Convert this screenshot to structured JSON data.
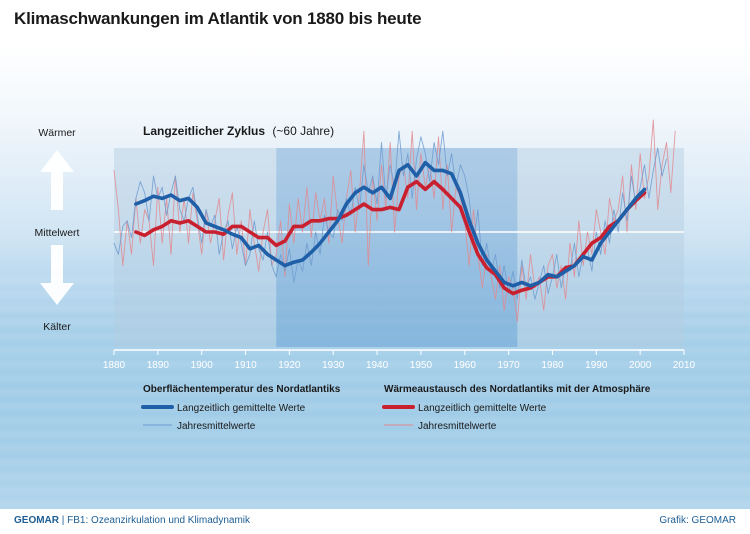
{
  "title": "Klimaschwankungen im Atlantik von 1880 bis heute",
  "footer": {
    "brand": "GEOMAR",
    "department": "| FB1: Ozeanzirkulation und Klimadynamik",
    "credit": "Grafik: GEOMAR"
  },
  "colors": {
    "ocean_temperature": "#1f5fa8",
    "ocean_temperature_thin": "#6d9bcf",
    "heat_exchange": "#c8202f",
    "heat_exchange_thin": "#e08a90"
  },
  "chart_data": {
    "type": "line",
    "title": "Langzeitlicher Zyklus",
    "subtitle": "(~60 Jahre)",
    "y_labels": {
      "top": "Wärmer",
      "middle": "Mittelwert",
      "bottom": "Kälter"
    },
    "xlim": [
      1880,
      2010
    ],
    "ylim": [
      -1,
      1
    ],
    "x_ticks": [
      1880,
      1890,
      1900,
      1910,
      1920,
      1930,
      1940,
      1950,
      1960,
      1970,
      1980,
      1990,
      2000,
      2010
    ],
    "phases": [
      {
        "start": 1880,
        "end": 1917,
        "phase": "warm"
      },
      {
        "start": 1917,
        "end": 1972,
        "phase": "cool"
      },
      {
        "start": 1972,
        "end": 2010,
        "phase": "warm"
      }
    ],
    "legend_groups": [
      {
        "heading": "Oberflächentemperatur des Nordatlantiks",
        "items": [
          "Langzeitlich gemittelte Werte",
          "Jahresmittelwerte"
        ]
      },
      {
        "heading": "Wärmeaustausch des Nordatlantiks mit der Atmosphäre",
        "items": [
          "Langzeitlich gemittelte Werte",
          "Jahresmittelwerte"
        ]
      }
    ],
    "series": [
      {
        "name": "Oberflächentemperatur des Nordatlantiks – Langzeitlich gemittelte Werte",
        "style": "smooth",
        "x": [
          1885,
          1887,
          1889,
          1891,
          1893,
          1895,
          1897,
          1899,
          1901,
          1903,
          1905,
          1907,
          1909,
          1911,
          1913,
          1915,
          1917,
          1919,
          1921,
          1923,
          1925,
          1927,
          1929,
          1931,
          1933,
          1935,
          1937,
          1939,
          1941,
          1943,
          1945,
          1947,
          1949,
          1951,
          1953,
          1955,
          1957,
          1959,
          1961,
          1963,
          1965,
          1967,
          1969,
          1971,
          1973,
          1975,
          1977,
          1979,
          1981,
          1983,
          1985,
          1987,
          1989,
          1991,
          1993,
          1995,
          1997,
          1999,
          2001
        ],
        "values": [
          0.25,
          0.28,
          0.32,
          0.3,
          0.33,
          0.28,
          0.3,
          0.22,
          0.08,
          0.05,
          0.02,
          -0.02,
          -0.05,
          -0.15,
          -0.12,
          -0.2,
          -0.25,
          -0.3,
          -0.27,
          -0.25,
          -0.18,
          -0.1,
          0.0,
          0.1,
          0.25,
          0.35,
          0.4,
          0.35,
          0.4,
          0.3,
          0.55,
          0.6,
          0.5,
          0.62,
          0.55,
          0.55,
          0.52,
          0.35,
          0.1,
          -0.1,
          -0.25,
          -0.35,
          -0.45,
          -0.48,
          -0.45,
          -0.48,
          -0.45,
          -0.38,
          -0.4,
          -0.35,
          -0.3,
          -0.22,
          -0.25,
          -0.1,
          0.0,
          0.1,
          0.2,
          0.3,
          0.38
        ]
      },
      {
        "name": "Oberflächentemperatur des Nordatlantiks – Jahresmittelwerte",
        "style": "thin",
        "x": [
          1880,
          1881,
          1882,
          1883,
          1884,
          1885,
          1886,
          1887,
          1888,
          1889,
          1890,
          1891,
          1892,
          1893,
          1894,
          1895,
          1896,
          1897,
          1898,
          1899,
          1900,
          1901,
          1902,
          1903,
          1904,
          1905,
          1906,
          1907,
          1908,
          1909,
          1910,
          1911,
          1912,
          1913,
          1914,
          1915,
          1916,
          1917,
          1918,
          1919,
          1920,
          1921,
          1922,
          1923,
          1924,
          1925,
          1926,
          1927,
          1928,
          1929,
          1930,
          1931,
          1932,
          1933,
          1934,
          1935,
          1936,
          1937,
          1938,
          1939,
          1940,
          1941,
          1942,
          1943,
          1944,
          1945,
          1946,
          1947,
          1948,
          1949,
          1950,
          1951,
          1952,
          1953,
          1954,
          1955,
          1956,
          1957,
          1958,
          1959,
          1960,
          1961,
          1962,
          1963,
          1964,
          1965,
          1966,
          1967,
          1968,
          1969,
          1970,
          1971,
          1972,
          1973,
          1974,
          1975,
          1976,
          1977,
          1978,
          1979,
          1980,
          1981,
          1982,
          1983,
          1984,
          1985,
          1986,
          1987,
          1988,
          1989,
          1990,
          1991,
          1992,
          1993,
          1994,
          1995,
          1996,
          1997,
          1998,
          1999,
          2000,
          2001,
          2002,
          2003,
          2004,
          2005,
          2006
        ],
        "values": [
          -0.1,
          -0.2,
          0.05,
          0.1,
          -0.05,
          0.3,
          0.45,
          0.35,
          0.1,
          0.5,
          0.3,
          0.4,
          0.15,
          0.35,
          0.5,
          0.2,
          0.1,
          0.3,
          0.4,
          0.15,
          -0.1,
          0.2,
          0.05,
          0.15,
          -0.2,
          0.0,
          0.1,
          -0.15,
          0.05,
          -0.1,
          -0.3,
          -0.2,
          0.1,
          -0.15,
          -0.25,
          0.0,
          -0.3,
          -0.4,
          -0.2,
          -0.35,
          -0.15,
          -0.45,
          -0.25,
          -0.35,
          -0.1,
          -0.3,
          0.0,
          -0.2,
          0.15,
          0.0,
          -0.05,
          0.2,
          0.1,
          0.3,
          0.15,
          0.4,
          0.2,
          0.6,
          0.35,
          0.5,
          0.25,
          0.8,
          0.3,
          0.6,
          0.4,
          0.9,
          0.5,
          0.7,
          0.3,
          0.65,
          0.85,
          0.7,
          0.45,
          0.8,
          0.6,
          0.9,
          0.5,
          0.7,
          0.4,
          0.6,
          0.5,
          0.3,
          -0.1,
          0.2,
          -0.3,
          -0.1,
          -0.35,
          -0.2,
          -0.5,
          -0.3,
          -0.55,
          -0.35,
          -0.6,
          -0.25,
          -0.5,
          -0.4,
          -0.6,
          -0.45,
          -0.3,
          -0.55,
          -0.4,
          -0.2,
          -0.5,
          -0.3,
          -0.35,
          -0.1,
          -0.4,
          -0.2,
          -0.15,
          -0.35,
          0.0,
          -0.2,
          0.1,
          -0.1,
          0.2,
          0.0,
          0.35,
          0.1,
          0.5,
          0.25,
          0.4,
          0.6,
          0.3,
          0.55,
          0.75,
          0.5,
          0.65
        ]
      },
      {
        "name": "Wärmeaustausch des Nordatlantiks mit der Atmosphäre – Langzeitlich gemittelte Werte",
        "style": "smooth",
        "x": [
          1885,
          1887,
          1889,
          1891,
          1893,
          1895,
          1897,
          1899,
          1901,
          1903,
          1905,
          1907,
          1909,
          1911,
          1913,
          1915,
          1917,
          1919,
          1921,
          1923,
          1925,
          1927,
          1929,
          1931,
          1933,
          1935,
          1937,
          1939,
          1941,
          1943,
          1945,
          1947,
          1949,
          1951,
          1953,
          1955,
          1957,
          1959,
          1961,
          1963,
          1965,
          1967,
          1969,
          1971,
          1973,
          1975,
          1977,
          1979,
          1981,
          1983,
          1985,
          1987,
          1989,
          1991,
          1993,
          1995,
          1997,
          1999,
          2001
        ],
        "values": [
          0.0,
          -0.03,
          0.02,
          0.05,
          0.1,
          0.08,
          0.1,
          0.05,
          0.0,
          0.0,
          -0.02,
          0.05,
          0.05,
          0.0,
          -0.05,
          -0.05,
          -0.12,
          -0.08,
          0.05,
          0.05,
          0.1,
          0.1,
          0.12,
          0.12,
          0.15,
          0.2,
          0.25,
          0.2,
          0.2,
          0.22,
          0.2,
          0.4,
          0.45,
          0.38,
          0.45,
          0.38,
          0.3,
          0.22,
          0.0,
          -0.2,
          -0.32,
          -0.38,
          -0.5,
          -0.55,
          -0.52,
          -0.5,
          -0.45,
          -0.4,
          -0.4,
          -0.32,
          -0.3,
          -0.2,
          -0.1,
          -0.05,
          0.05,
          0.1,
          0.2,
          0.28,
          0.35
        ]
      },
      {
        "name": "Wärmeaustausch des Nordatlantiks mit der Atmosphäre – Jahresmittelwerte",
        "style": "thin",
        "x": [
          1880,
          1881,
          1882,
          1883,
          1884,
          1885,
          1886,
          1887,
          1888,
          1889,
          1890,
          1891,
          1892,
          1893,
          1894,
          1895,
          1896,
          1897,
          1898,
          1899,
          1900,
          1901,
          1902,
          1903,
          1904,
          1905,
          1906,
          1907,
          1908,
          1909,
          1910,
          1911,
          1912,
          1913,
          1914,
          1915,
          1916,
          1917,
          1918,
          1919,
          1920,
          1921,
          1922,
          1923,
          1924,
          1925,
          1926,
          1927,
          1928,
          1929,
          1930,
          1931,
          1932,
          1933,
          1934,
          1935,
          1936,
          1937,
          1938,
          1939,
          1940,
          1941,
          1942,
          1943,
          1944,
          1945,
          1946,
          1947,
          1948,
          1949,
          1950,
          1951,
          1952,
          1953,
          1954,
          1955,
          1956,
          1957,
          1958,
          1959,
          1960,
          1961,
          1962,
          1963,
          1964,
          1965,
          1966,
          1967,
          1968,
          1969,
          1970,
          1971,
          1972,
          1973,
          1974,
          1975,
          1976,
          1977,
          1978,
          1979,
          1980,
          1981,
          1982,
          1983,
          1984,
          1985,
          1986,
          1987,
          1988,
          1989,
          1990,
          1991,
          1992,
          1993,
          1994,
          1995,
          1996,
          1997,
          1998,
          1999,
          2000,
          2001,
          2002,
          2003,
          2004,
          2005,
          2006,
          2007,
          2008
        ],
        "values": [
          0.55,
          0.2,
          -0.3,
          0.1,
          -0.2,
          0.3,
          -0.1,
          0.2,
          0.1,
          -0.3,
          0.4,
          -0.1,
          0.3,
          -0.2,
          0.5,
          0.0,
          0.3,
          -0.1,
          0.35,
          0.1,
          -0.2,
          0.2,
          -0.1,
          0.1,
          0.3,
          -0.25,
          0.15,
          0.35,
          -0.2,
          0.1,
          -0.3,
          0.2,
          -0.1,
          -0.35,
          0.0,
          0.2,
          -0.3,
          -0.2,
          0.1,
          -0.4,
          0.25,
          -0.1,
          0.3,
          0.0,
          0.4,
          -0.05,
          0.35,
          0.1,
          0.3,
          -0.1,
          0.5,
          0.15,
          -0.1,
          0.3,
          0.55,
          0.0,
          0.35,
          0.9,
          -0.3,
          0.5,
          0.1,
          0.6,
          0.2,
          0.8,
          0.0,
          0.5,
          0.6,
          0.3,
          0.9,
          0.2,
          0.7,
          0.4,
          0.6,
          0.3,
          0.85,
          0.2,
          0.6,
          0.0,
          0.4,
          0.3,
          0.1,
          -0.3,
          0.2,
          -0.2,
          -0.5,
          -0.2,
          -0.4,
          -0.6,
          -0.3,
          -0.7,
          -0.4,
          -0.5,
          -0.8,
          -0.3,
          -0.6,
          -0.2,
          -0.5,
          -0.4,
          -0.7,
          -0.3,
          -0.2,
          -0.5,
          -0.3,
          -0.6,
          -0.1,
          -0.4,
          0.1,
          -0.3,
          0.0,
          -0.2,
          0.2,
          0.0,
          -0.2,
          0.3,
          0.1,
          0.2,
          0.5,
          0.0,
          0.6,
          0.2,
          0.7,
          0.3,
          0.5,
          1.0,
          0.2,
          0.6,
          0.8,
          0.35,
          0.9
        ]
      }
    ]
  }
}
